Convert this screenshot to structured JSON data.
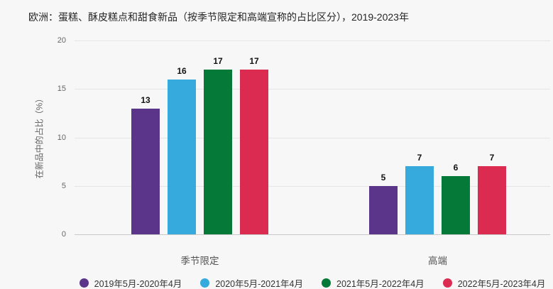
{
  "title": "欧洲：蛋糕、酥皮糕点和甜食新品（按季节限定和高端宣称的占比区分），2019-2023年",
  "y_axis": {
    "label": "在新品中的占比（%）",
    "ticks": [
      0,
      5,
      10,
      15,
      20
    ],
    "max": 20
  },
  "colors": {
    "background": "#f7f7f7",
    "gridline": "#e5e5e5",
    "axis_line": "#c9c9c9",
    "title_text": "#262626",
    "tick_text": "#666666",
    "category_text": "#555555",
    "legend_text": "#333333",
    "value_label_text": "#111111",
    "series_purple": "#5b3589",
    "series_blue": "#36a9dd",
    "series_green": "#057a38",
    "series_red": "#dc2b50"
  },
  "chart_data": {
    "type": "bar",
    "title": "欧洲：蛋糕、酥皮糕点和甜食新品（按季节限定和高端宣称的占比区分），2019-2023年",
    "categories": [
      "季节限定",
      "高端"
    ],
    "series": [
      {
        "name": "2019年5月-2020年4月",
        "color": "#5b3589",
        "values": [
          13,
          5
        ]
      },
      {
        "name": "2020年5月-2021年4月",
        "color": "#36a9dd",
        "values": [
          16,
          7
        ]
      },
      {
        "name": "2021年5月-2022年4月",
        "color": "#057a38",
        "values": [
          17,
          6
        ]
      },
      {
        "name": "2022年5月-2023年4月",
        "color": "#dc2b50",
        "values": [
          17,
          7
        ]
      }
    ],
    "xlabel": "",
    "ylabel": "在新品中的占比（%）",
    "ylim": [
      0,
      20
    ],
    "yticks": [
      0,
      5,
      10,
      15,
      20
    ],
    "grid": "horizontal",
    "legend_position": "bottom",
    "value_labels": true
  }
}
